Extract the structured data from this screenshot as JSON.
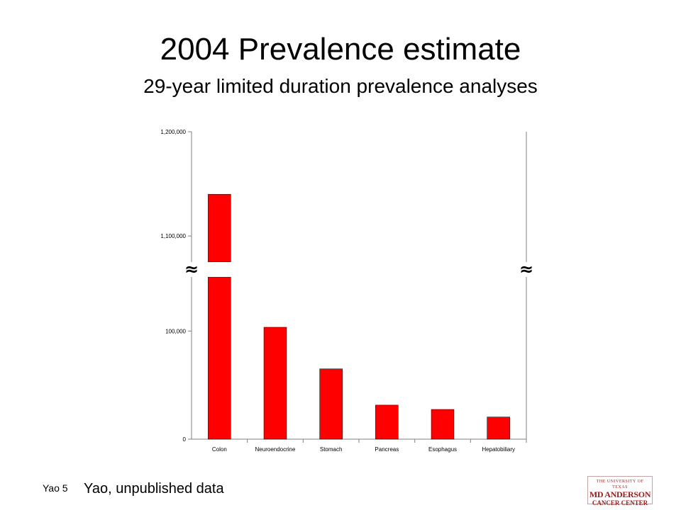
{
  "slide": {
    "title": "2004 Prevalence estimate",
    "subtitle": "29-year limited duration prevalence analyses",
    "slide_number": "Yao 5",
    "source_note": "Yao, unpublished data",
    "logo": {
      "line1": "THE UNIVERSITY OF TEXAS",
      "line2": "MD ANDERSON",
      "line3": "CANCER CENTER"
    }
  },
  "colors": {
    "bar_fill": "#ff0000",
    "bar_stroke": "#000000",
    "axis": "#808080",
    "tick_label": "#000000"
  },
  "chart_data": {
    "type": "bar",
    "categories": [
      "Colon",
      "Neuroendocrine",
      "Stomach",
      "Pancreas",
      "Esophagus",
      "Hepatobiliary"
    ],
    "values": [
      1140000,
      103500,
      65000,
      31500,
      27500,
      20500
    ],
    "y_tick_labels": [
      "0",
      "100,000",
      "1,100,000",
      "1,200,000"
    ],
    "ylim": [
      0,
      1200000
    ],
    "axis_break": {
      "symbol": "≈",
      "from": 156000,
      "to": 1070000
    },
    "legend": "none",
    "grid": false
  }
}
